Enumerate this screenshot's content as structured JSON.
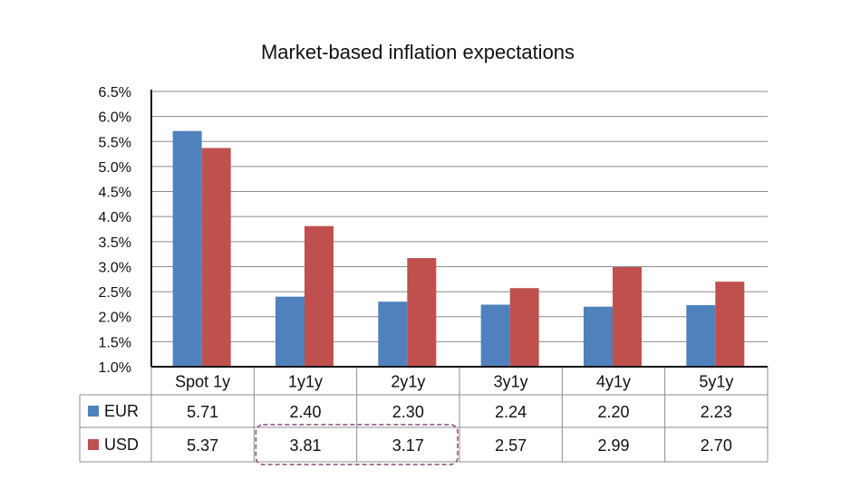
{
  "chart_data": {
    "type": "bar",
    "title": "Market-based inflation expectations",
    "categories": [
      "Spot 1y",
      "1y1y",
      "2y1y",
      "3y1y",
      "4y1y",
      "5y1y"
    ],
    "series": [
      {
        "name": "EUR",
        "color": "#4f81bd",
        "values": [
          5.71,
          2.4,
          2.3,
          2.24,
          2.2,
          2.23
        ],
        "labels": [
          "5.71",
          "2.40",
          "2.30",
          "2.24",
          "2.20",
          "2.23"
        ]
      },
      {
        "name": "USD",
        "color": "#c0504d",
        "values": [
          5.37,
          3.81,
          3.17,
          2.57,
          2.99,
          2.7
        ],
        "labels": [
          "5.37",
          "3.81",
          "3.17",
          "2.57",
          "2.99",
          "2.70"
        ]
      }
    ],
    "yticks": [
      "1.0%",
      "1.5%",
      "2.0%",
      "2.5%",
      "3.0%",
      "3.5%",
      "4.0%",
      "4.5%",
      "5.0%",
      "5.5%",
      "6.0%",
      "6.5%"
    ],
    "ylim": [
      1.0,
      6.5
    ],
    "grid": true,
    "legend": "data-table",
    "annotation": {
      "type": "dashed-highlight",
      "series": "USD",
      "categories": [
        "1y1y",
        "2y1y"
      ],
      "color": "#8c4a78"
    }
  }
}
